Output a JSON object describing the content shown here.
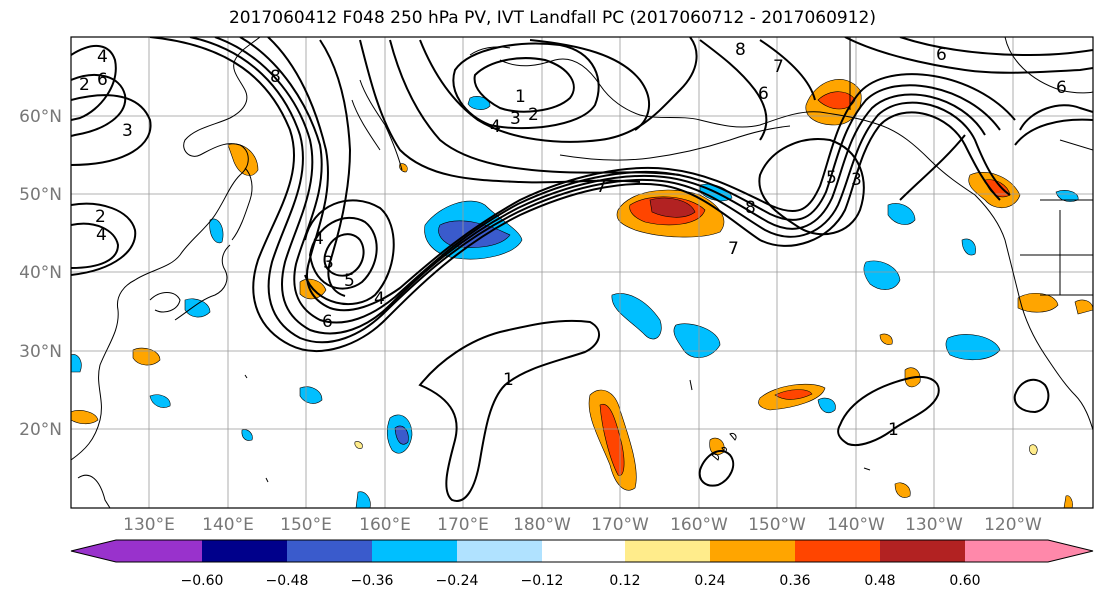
{
  "title": "2017060412 F048 250 hPa PV, IVT Landfall PC (2017060712 - 2017060912)",
  "map": {
    "lat_labels": [
      "60°N",
      "50°N",
      "40°N",
      "30°N",
      "20°N"
    ],
    "lon_labels": [
      "130°E",
      "140°E",
      "150°E",
      "160°E",
      "170°E",
      "180°W",
      "170°W",
      "160°W",
      "150°W",
      "140°W",
      "130°W",
      "120°W"
    ],
    "contour_labels": [
      "4",
      "6",
      "2",
      "3",
      "8",
      "4",
      "3",
      "2",
      "1",
      "7",
      "7",
      "6",
      "8",
      "6",
      "8",
      "7",
      "5",
      "4",
      "3",
      "1",
      "1",
      "2",
      "4",
      "6",
      "5",
      "3",
      "4",
      "6"
    ]
  },
  "colorbar": {
    "tick_labels": [
      "−0.60",
      "−0.48",
      "−0.36",
      "−0.24",
      "−0.12",
      "0.12",
      "0.24",
      "0.36",
      "0.48",
      "0.60"
    ],
    "colors": [
      "#9932CC",
      "#00008B",
      "#3A5BCC",
      "#00BFFF",
      "#B0E2FF",
      "#FFFFFF",
      "#FFEC8B",
      "#FFA500",
      "#FF4500",
      "#B22222",
      "#FF88AA"
    ]
  }
}
